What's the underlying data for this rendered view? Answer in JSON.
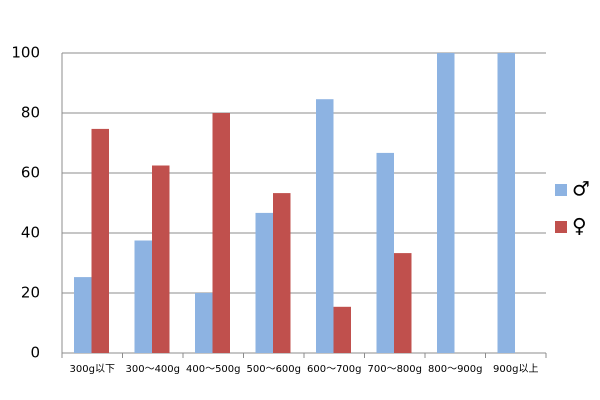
{
  "chart_data": {
    "type": "bar",
    "categories": [
      "300g以下",
      "300～400g",
      "400～500g",
      "500～600g",
      "600～700g",
      "700～800g",
      "800～900g",
      "900g以上"
    ],
    "series": [
      {
        "name": "♂",
        "color": "#8db3e2",
        "values": [
          25.3,
          37.5,
          20,
          46.7,
          84.6,
          66.7,
          100,
          100
        ]
      },
      {
        "name": "♀",
        "color": "#c0504d",
        "values": [
          74.7,
          62.5,
          80,
          53.3,
          15.4,
          33.3,
          0,
          0
        ]
      }
    ],
    "ylim": [
      0,
      100
    ],
    "yticks": [
      0,
      20,
      40,
      60,
      80,
      100
    ],
    "grid": true,
    "legend": "right"
  }
}
